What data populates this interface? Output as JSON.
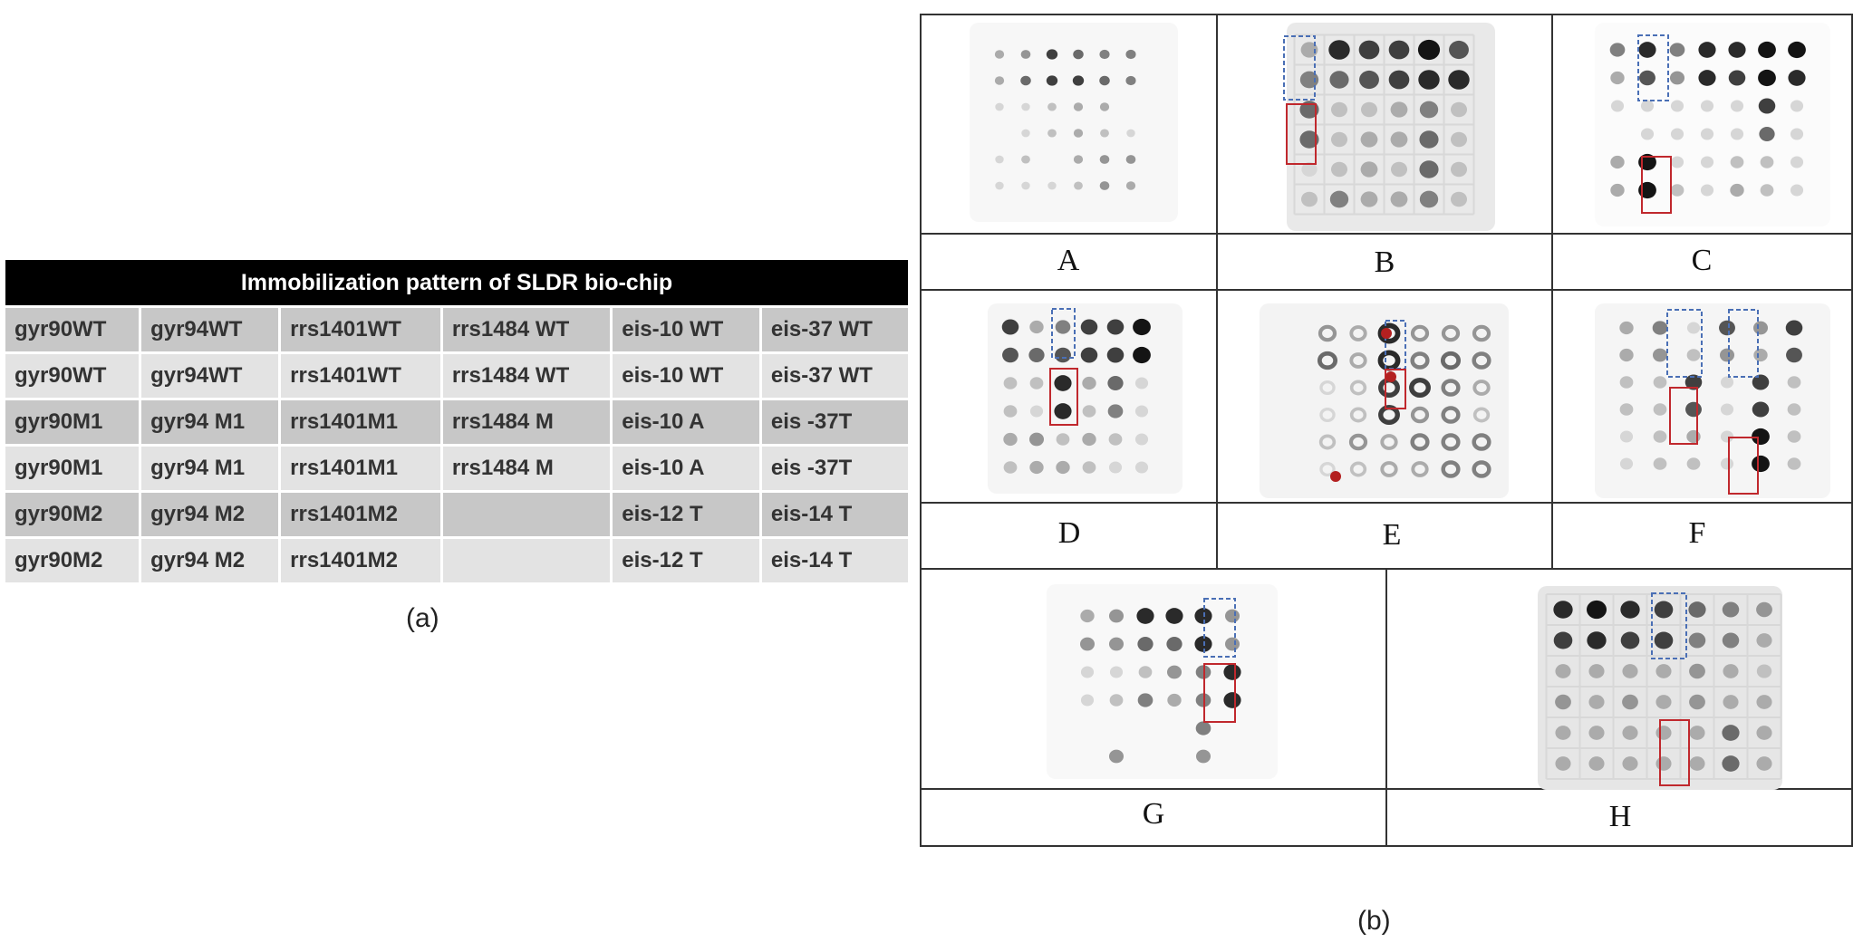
{
  "table": {
    "title": "Immobilization pattern of SLDR bio-chip",
    "rows": [
      [
        "gyr90WT",
        "gyr94WT",
        "rrs1401WT",
        "rrs1484 WT",
        "eis-10 WT",
        "eis-37 WT"
      ],
      [
        "gyr90WT",
        "gyr94WT",
        "rrs1401WT",
        "rrs1484 WT",
        "eis-10 WT",
        "eis-37 WT"
      ],
      [
        "gyr90M1",
        "gyr94 M1",
        "rrs1401M1",
        "rrs1484 M",
        "eis-10 A",
        "eis -37T"
      ],
      [
        "gyr90M1",
        "gyr94 M1",
        "rrs1401M1",
        "rrs1484 M",
        "eis-10 A",
        "eis -37T"
      ],
      [
        "gyr90M2",
        "gyr94 M2",
        "rrs1401M2",
        "",
        "eis-12 T",
        "eis-14 T"
      ],
      [
        "gyr90M2",
        "gyr94 M2",
        "rrs1401M2",
        "",
        "eis-12 T",
        "eis-14 T"
      ]
    ]
  },
  "captions": {
    "a": "(a)",
    "b": "(b)"
  },
  "panels": {
    "A": {
      "label": "A"
    },
    "B": {
      "label": "B"
    },
    "C": {
      "label": "C"
    },
    "D": {
      "label": "D"
    },
    "E": {
      "label": "E"
    },
    "F": {
      "label": "F"
    },
    "G": {
      "label": "G"
    },
    "H": {
      "label": "H"
    }
  },
  "colors": {
    "wildtype_box": "#4a6fb5",
    "mutant_box": "#c0282d",
    "spot": "#222222"
  }
}
